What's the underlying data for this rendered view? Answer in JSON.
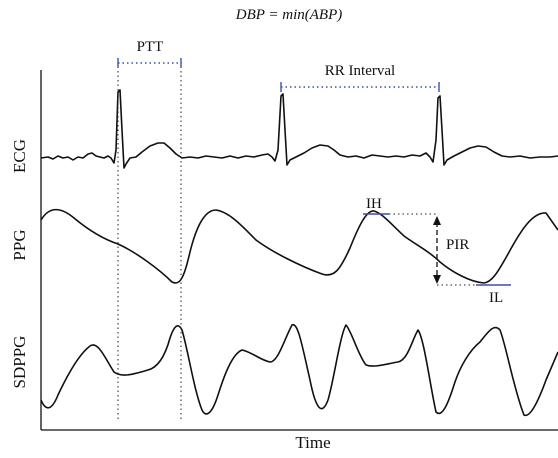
{
  "formula": "DBP = min(ABP)",
  "labels": {
    "ptt": "PTT",
    "rr_interval": "RR Interval",
    "ih": "IH",
    "il": "IL",
    "pir": "PIR",
    "time": "Time"
  },
  "signals": {
    "ecg": "ECG",
    "ppg": "PPG",
    "sdppg": "SDPPG"
  },
  "colors": {
    "ink": "#111111",
    "accent": "#3a4fa8"
  }
}
